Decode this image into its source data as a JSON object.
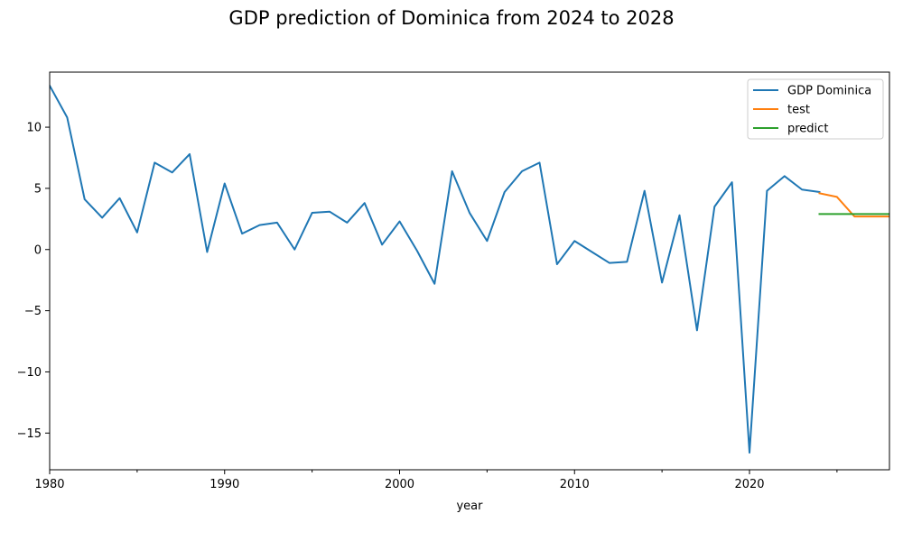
{
  "chart_data": {
    "type": "line",
    "title": "GDP prediction of Dominica from 2024 to 2028",
    "xlabel": "year",
    "ylabel": "",
    "xlim": [
      1980,
      2028
    ],
    "ylim": [
      -18,
      14.5
    ],
    "x_ticks": [
      1980,
      1990,
      2000,
      2010,
      2020
    ],
    "x_tick_labels": [
      "1980",
      "1990",
      "2000",
      "2010",
      "2020"
    ],
    "x_minor_ticks": [
      1985,
      1995,
      2005,
      2015,
      2025
    ],
    "y_ticks": [
      -15,
      -10,
      -5,
      0,
      5,
      10
    ],
    "y_tick_labels": [
      "−15",
      "−10",
      "−5",
      "0",
      "5",
      "10"
    ],
    "grid": false,
    "legend_position": "top-right",
    "series": [
      {
        "name": "GDP Dominica",
        "color": "#1f77b4",
        "x": [
          1980,
          1981,
          1982,
          1983,
          1984,
          1985,
          1986,
          1987,
          1988,
          1989,
          1990,
          1991,
          1992,
          1993,
          1994,
          1995,
          1996,
          1997,
          1998,
          1999,
          2000,
          2001,
          2002,
          2003,
          2004,
          2005,
          2006,
          2007,
          2008,
          2009,
          2010,
          2011,
          2012,
          2013,
          2014,
          2015,
          2016,
          2017,
          2018,
          2019,
          2020,
          2021,
          2022,
          2023,
          2024
        ],
        "values": [
          13.4,
          10.8,
          4.1,
          2.6,
          4.2,
          1.4,
          7.1,
          6.3,
          7.8,
          -0.2,
          5.4,
          1.3,
          2.0,
          2.2,
          0.0,
          3.0,
          3.1,
          2.2,
          3.8,
          0.4,
          2.3,
          -0.1,
          -2.8,
          6.4,
          3.0,
          0.7,
          4.7,
          6.4,
          7.1,
          -1.2,
          0.7,
          -0.2,
          -1.1,
          -1.0,
          4.8,
          -2.7,
          2.8,
          -6.6,
          3.5,
          5.5,
          -16.6,
          4.8,
          6.0,
          4.9,
          4.7
        ]
      },
      {
        "name": "test",
        "color": "#ff7f0e",
        "x": [
          2024,
          2025,
          2026,
          2027,
          2028
        ],
        "values": [
          4.6,
          4.3,
          2.7,
          2.7,
          2.7
        ]
      },
      {
        "name": "predict",
        "color": "#2ca02c",
        "x": [
          2024,
          2025,
          2026,
          2027,
          2028
        ],
        "values": [
          2.9,
          2.9,
          2.9,
          2.9,
          2.9
        ]
      }
    ]
  }
}
